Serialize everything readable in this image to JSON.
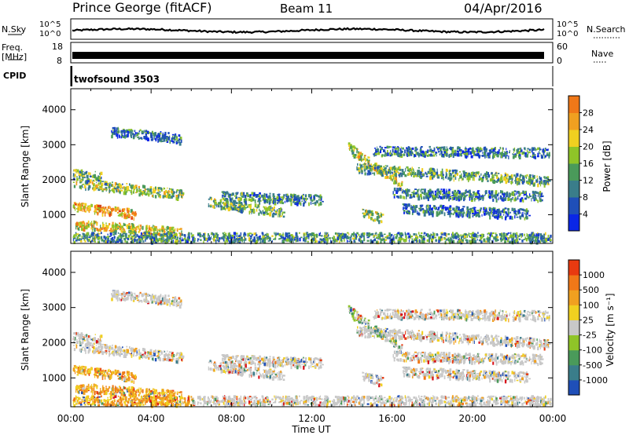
{
  "header": {
    "station": "Prince George (fitACF)",
    "beam": "Beam 11",
    "date": "04/Apr/2016"
  },
  "top_panels": {
    "nsky_label": "N.Sky",
    "nsky_ticks": [
      "10^5",
      "10^0"
    ],
    "nsearch_label": "N.Search",
    "nsearch_ticks": [
      "10^5",
      "10^0"
    ],
    "freq_label_1": "Freq.",
    "freq_label_2": "[MHz]",
    "freq_ticks": [
      "18",
      "8"
    ],
    "nave_label": "Nave",
    "nave_ticks": [
      "60",
      "0"
    ],
    "cpid_label": "CPID",
    "cpid_value": "twofsound 3503"
  },
  "chart_data": [
    {
      "type": "heatmap",
      "name": "power",
      "ylabel": "Slant Range [km]",
      "yticks": [
        1000,
        2000,
        3000,
        4000
      ],
      "ylim": [
        180,
        4600
      ],
      "xlim": [
        0,
        24
      ],
      "colorbar_label": "Power [dB]",
      "colorbar_ticks": [
        "4",
        "8",
        "12",
        "16",
        "20",
        "24",
        "28"
      ],
      "colors": [
        "#0a26e6",
        "#1f4fb8",
        "#3a7d8a",
        "#4a9a5a",
        "#8fc428",
        "#f0d020",
        "#f0a020",
        "#f07818",
        "#e83a10",
        "#d8121a"
      ],
      "echo_bands": [
        {
          "t0": 0.1,
          "t1": 5.6,
          "r0": 1950,
          "r1": 1600,
          "level": 0.42
        },
        {
          "t0": 0.1,
          "t1": 3.2,
          "r0": 1250,
          "r1": 1050,
          "level": 0.62
        },
        {
          "t0": 0.2,
          "t1": 5.5,
          "r0": 750,
          "r1": 520,
          "level": 0.55
        },
        {
          "t0": 0.1,
          "t1": 1.5,
          "r0": 2200,
          "r1": 2100,
          "level": 0.35
        },
        {
          "t0": 6.8,
          "t1": 10.6,
          "r0": 1400,
          "r1": 1080,
          "level": 0.4
        },
        {
          "t0": 7.5,
          "t1": 12.5,
          "r0": 1550,
          "r1": 1450,
          "level": 0.28
        },
        {
          "t0": 13.8,
          "t1": 16.5,
          "r0": 2950,
          "r1": 1850,
          "level": 0.5
        },
        {
          "t0": 14.2,
          "t1": 23.8,
          "r0": 2350,
          "r1": 2000,
          "level": 0.35
        },
        {
          "t0": 15.0,
          "t1": 23.8,
          "r0": 2850,
          "r1": 2800,
          "level": 0.26
        },
        {
          "t0": 16.0,
          "t1": 23.5,
          "r0": 1650,
          "r1": 1550,
          "level": 0.25
        },
        {
          "t0": 14.5,
          "t1": 15.5,
          "r0": 1050,
          "r1": 950,
          "level": 0.45
        },
        {
          "t0": 0.1,
          "t1": 23.9,
          "r0": 380,
          "r1": 380,
          "level": 0.3
        },
        {
          "t0": 16.5,
          "t1": 22.8,
          "r0": 1200,
          "r1": 1050,
          "level": 0.22
        },
        {
          "t0": 2.0,
          "t1": 5.5,
          "r0": 3400,
          "r1": 3200,
          "level": 0.22
        }
      ]
    },
    {
      "type": "heatmap",
      "name": "velocity",
      "ylabel": "Slant Range [km]",
      "xlabel": "Time UT",
      "xticks": [
        "00:00",
        "04:00",
        "08:00",
        "12:00",
        "16:00",
        "20:00",
        "00:00"
      ],
      "yticks": [
        1000,
        2000,
        3000,
        4000
      ],
      "ylim": [
        180,
        4600
      ],
      "xlim": [
        0,
        24
      ],
      "colorbar_label": "Velocity [m s⁻¹]",
      "colorbar_ticks": [
        "1000",
        "500",
        "100",
        "25",
        "-25",
        "-100",
        "-500",
        "-1000"
      ],
      "colors": [
        "#0a26e6",
        "#1f4fb8",
        "#3a7d8a",
        "#4a9a5a",
        "#8fc428",
        "#c8c8c8",
        "#f0d020",
        "#f0a020",
        "#f07818",
        "#e83a10",
        "#d8121a"
      ]
    }
  ]
}
